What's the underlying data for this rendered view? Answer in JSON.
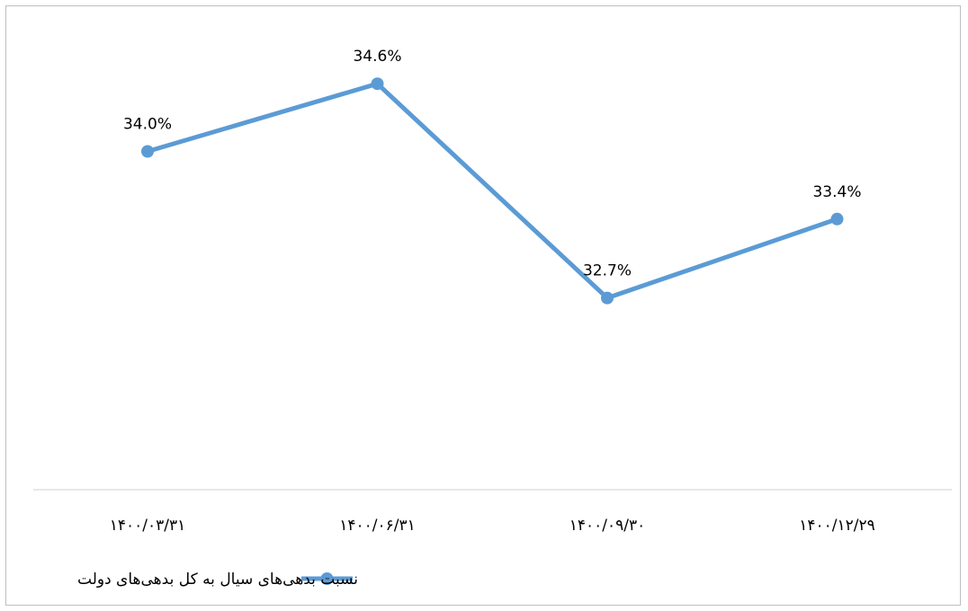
{
  "chart_data": {
    "type": "line",
    "categories": [
      "۱۴۰۰/۰۳/۳۱",
      "۱۴۰۰/۰۶/۳۱",
      "۱۴۰۰/۰۹/۳۰",
      "۱۴۰۰/۱۲/۲۹"
    ],
    "series": [
      {
        "name": "نسبت بدهی‌های سیال به کل بدهی‌های دولت",
        "values": [
          34.0,
          34.6,
          32.7,
          33.4
        ],
        "labels": [
          "34.0%",
          "34.6%",
          "32.7%",
          "33.4%"
        ],
        "color": "#5b9bd5"
      }
    ],
    "ylim": [
      31.0,
      35.0
    ],
    "axis_color": "#d9d9d9",
    "grid": false,
    "legend_position": "bottom"
  }
}
